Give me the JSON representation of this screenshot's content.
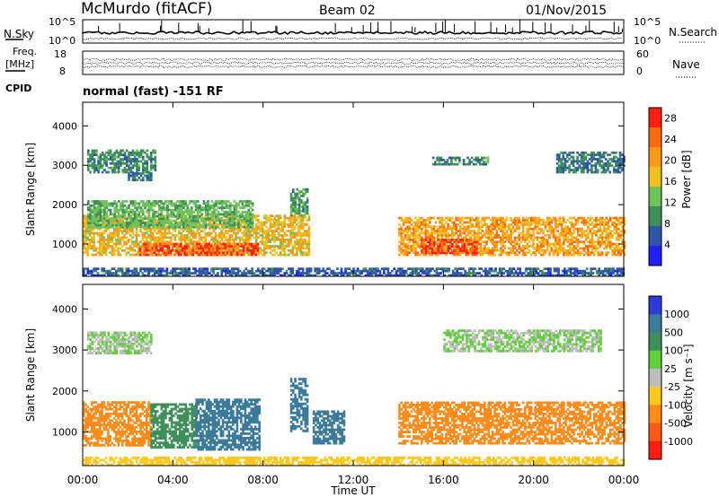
{
  "header": {
    "station": "McMurdo (fitACF)",
    "beam": "Beam 02",
    "date": "01/Nov/2015"
  },
  "noise_panel": {
    "left_label": "N.Sky",
    "right_label": "N.Search",
    "y_ticks_left": [
      "10^5",
      "10^0"
    ],
    "y_ticks_right": [
      "10^5",
      "10^0"
    ]
  },
  "freq_panel": {
    "left_label_top": "Freq.",
    "left_label_bottom": "[MHz]",
    "right_label": "Nave",
    "y_ticks_left": [
      "18",
      "8"
    ],
    "y_ticks_right": [
      "60",
      "0"
    ]
  },
  "cpid": {
    "label": "CPID",
    "mode": "normal (fast) -151 RF"
  },
  "chart_data": [
    {
      "type": "heatmap",
      "quantity": "Power",
      "ylabel": "Slant Range [km]",
      "ylim": [
        180,
        4600
      ],
      "y_ticks": [
        1000,
        2000,
        3000,
        4000
      ],
      "colorbar_label": "Power [dB]",
      "colorbar_ticks": [
        4,
        8,
        12,
        16,
        20,
        24,
        28
      ],
      "colorbar_range": [
        0,
        30
      ],
      "colors": [
        "#2020ff",
        "#2d55a8",
        "#3f8f5a",
        "#6ec25a",
        "#f0c020",
        "#ff9a18",
        "#ff6a10",
        "#ff1e10"
      ],
      "regions": [
        {
          "t0": 0.0,
          "t1": 10.0,
          "r0": 700,
          "r1": 1700,
          "value": 18
        },
        {
          "t0": 2.5,
          "t1": 7.8,
          "r0": 700,
          "r1": 1000,
          "value": 26
        },
        {
          "t0": 0.2,
          "t1": 7.5,
          "r0": 1400,
          "r1": 2100,
          "value": 12
        },
        {
          "t0": 14.0,
          "t1": 24.0,
          "r0": 700,
          "r1": 1650,
          "value": 20
        },
        {
          "t0": 15.0,
          "t1": 17.5,
          "r0": 750,
          "r1": 1100,
          "value": 27
        },
        {
          "t0": 9.2,
          "t1": 10.0,
          "r0": 1700,
          "r1": 2400,
          "value": 10
        },
        {
          "t0": 0.2,
          "t1": 3.2,
          "r0": 2800,
          "r1": 3400,
          "value": 9
        },
        {
          "t0": 2.0,
          "t1": 3.0,
          "r0": 2600,
          "r1": 2800,
          "value": 7
        },
        {
          "t0": 21.0,
          "t1": 24.0,
          "r0": 2800,
          "r1": 3300,
          "value": 8
        },
        {
          "t0": 15.5,
          "t1": 18.0,
          "r0": 3000,
          "r1": 3200,
          "value": 9
        },
        {
          "t0": 0.0,
          "t1": 24.0,
          "r0": 180,
          "r1": 400,
          "value": 6
        }
      ]
    },
    {
      "type": "heatmap",
      "quantity": "Velocity",
      "xlabel": "Time UT",
      "ylabel": "Slant Range [km]",
      "ylim": [
        180,
        4600
      ],
      "y_ticks": [
        1000,
        2000,
        3000,
        4000
      ],
      "x_ticks": [
        "00:00",
        "04:00",
        "08:00",
        "12:00",
        "16:00",
        "20:00",
        "00:00"
      ],
      "colorbar_label": "Velocity [m s⁻¹]",
      "colorbar_ticks": [
        1000,
        500,
        100,
        25,
        -25,
        -100,
        -500,
        -1000
      ],
      "colors": [
        "#2c3cd8",
        "#3b7a9a",
        "#3f8f5a",
        "#5fcf3a",
        "#bdbdbd",
        "#ffc81e",
        "#ff8c1a",
        "#ff5a14",
        "#ff1e10"
      ],
      "regions": [
        {
          "t0": 0.0,
          "t1": 3.0,
          "r0": 650,
          "r1": 1750,
          "value": -300
        },
        {
          "t0": 3.0,
          "t1": 5.0,
          "r0": 600,
          "r1": 1700,
          "value": 50
        },
        {
          "t0": 5.0,
          "t1": 7.8,
          "r0": 550,
          "r1": 1800,
          "value": 300
        },
        {
          "t0": 9.2,
          "t1": 10.0,
          "r0": 1000,
          "r1": 2300,
          "value": 300
        },
        {
          "t0": 10.2,
          "t1": 11.6,
          "r0": 700,
          "r1": 1500,
          "value": 400
        },
        {
          "t0": 14.0,
          "t1": 24.0,
          "r0": 700,
          "r1": 1700,
          "value": -300
        },
        {
          "t0": 0.2,
          "t1": 3.0,
          "r0": 2900,
          "r1": 3400,
          "value": 0
        },
        {
          "t0": 16.0,
          "t1": 23.0,
          "r0": 2950,
          "r1": 3500,
          "value": 0
        },
        {
          "t0": 0.0,
          "t1": 24.0,
          "r0": 180,
          "r1": 400,
          "value": -60
        }
      ]
    }
  ]
}
